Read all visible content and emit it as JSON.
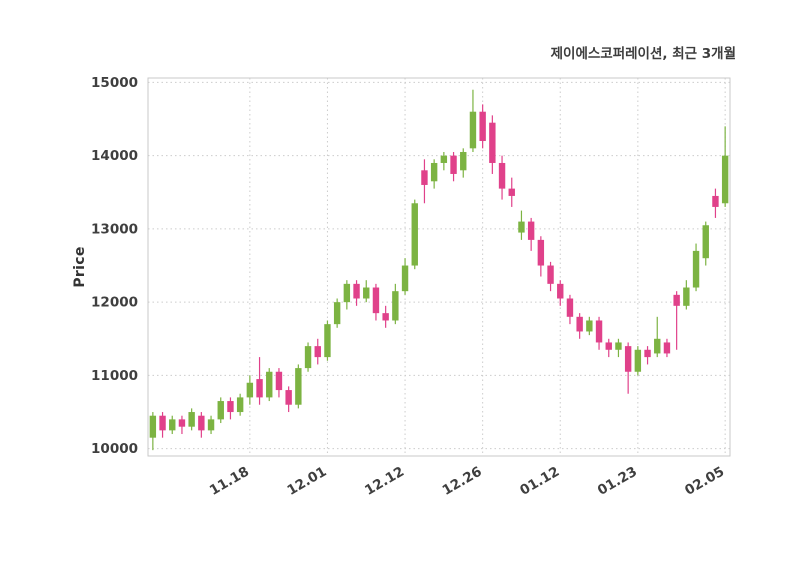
{
  "title": "제이에스코퍼레이션, 최근 3개월",
  "ylabel": "Price",
  "colors": {
    "up": "#7cb342",
    "down": "#e0418a",
    "grid": "#cccccc",
    "spine": "#c9c9c9",
    "tick_text": "#3f3f3f",
    "title_text": "#3d3d3d",
    "background": "#ffffff"
  },
  "chart_data": {
    "type": "candlestick",
    "title": "제이에스코퍼레이션, 최근 3개월",
    "xlabel": "",
    "ylabel": "Price",
    "ylim": [
      9900,
      15060
    ],
    "grid": true,
    "legend": false,
    "y_ticks": [
      10000,
      11000,
      12000,
      13000,
      14000,
      15000
    ],
    "x_ticks": [
      {
        "label": "11.18",
        "index": 10
      },
      {
        "label": "12.01",
        "index": 18
      },
      {
        "label": "12.12",
        "index": 26
      },
      {
        "label": "12.26",
        "index": 34
      },
      {
        "label": "01.12",
        "index": 42
      },
      {
        "label": "01.23",
        "index": 50
      },
      {
        "label": "02.05",
        "index": 59
      }
    ],
    "candle_format": [
      "open",
      "high",
      "low",
      "close"
    ],
    "candles": [
      [
        10150,
        10500,
        9980,
        10450
      ],
      [
        10450,
        10500,
        10150,
        10250
      ],
      [
        10250,
        10450,
        10200,
        10400
      ],
      [
        10400,
        10450,
        10200,
        10300
      ],
      [
        10300,
        10550,
        10250,
        10500
      ],
      [
        10450,
        10500,
        10150,
        10250
      ],
      [
        10250,
        10450,
        10200,
        10400
      ],
      [
        10400,
        10700,
        10350,
        10650
      ],
      [
        10650,
        10700,
        10400,
        10500
      ],
      [
        10500,
        10750,
        10450,
        10700
      ],
      [
        10700,
        11000,
        10600,
        10900
      ],
      [
        10950,
        11250,
        10600,
        10700
      ],
      [
        10700,
        11100,
        10650,
        11050
      ],
      [
        11050,
        11100,
        10700,
        10800
      ],
      [
        10800,
        10850,
        10500,
        10600
      ],
      [
        10600,
        11150,
        10550,
        11100
      ],
      [
        11100,
        11450,
        11050,
        11400
      ],
      [
        11400,
        11500,
        11150,
        11250
      ],
      [
        11250,
        11750,
        11200,
        11700
      ],
      [
        11700,
        12050,
        11650,
        12000
      ],
      [
        12000,
        12300,
        11900,
        12250
      ],
      [
        12250,
        12300,
        11950,
        12050
      ],
      [
        12050,
        12300,
        12000,
        12200
      ],
      [
        12200,
        12250,
        11750,
        11850
      ],
      [
        11850,
        11950,
        11650,
        11750
      ],
      [
        11750,
        12250,
        11700,
        12150
      ],
      [
        12150,
        12600,
        12100,
        12500
      ],
      [
        12500,
        13400,
        12450,
        13350
      ],
      [
        13800,
        13950,
        13350,
        13600
      ],
      [
        13650,
        13950,
        13550,
        13900
      ],
      [
        13900,
        14050,
        13800,
        14000
      ],
      [
        14000,
        14050,
        13650,
        13750
      ],
      [
        13800,
        14100,
        13700,
        14050
      ],
      [
        14100,
        14900,
        14050,
        14600
      ],
      [
        14600,
        14700,
        14100,
        14200
      ],
      [
        14450,
        14550,
        13750,
        13900
      ],
      [
        13900,
        14000,
        13400,
        13550
      ],
      [
        13550,
        13700,
        13300,
        13450
      ],
      [
        12950,
        13250,
        12850,
        13100
      ],
      [
        13100,
        13150,
        12700,
        12850
      ],
      [
        12850,
        12900,
        12350,
        12500
      ],
      [
        12500,
        12550,
        12150,
        12250
      ],
      [
        12250,
        12300,
        11950,
        12050
      ],
      [
        12050,
        12100,
        11700,
        11800
      ],
      [
        11800,
        11850,
        11500,
        11600
      ],
      [
        11600,
        11800,
        11550,
        11750
      ],
      [
        11750,
        11800,
        11350,
        11450
      ],
      [
        11450,
        11500,
        11250,
        11350
      ],
      [
        11350,
        11500,
        11250,
        11450
      ],
      [
        11400,
        11450,
        10750,
        11050
      ],
      [
        11050,
        11400,
        11000,
        11350
      ],
      [
        11350,
        11400,
        11150,
        11250
      ],
      [
        11300,
        11800,
        11250,
        11500
      ],
      [
        11450,
        11500,
        11250,
        11300
      ],
      [
        12100,
        12150,
        11350,
        11950
      ],
      [
        11950,
        12300,
        11900,
        12200
      ],
      [
        12200,
        12800,
        12150,
        12700
      ],
      [
        12600,
        13100,
        12500,
        13050
      ],
      [
        13450,
        13550,
        13150,
        13300
      ],
      [
        13350,
        14400,
        13300,
        14000
      ]
    ]
  }
}
